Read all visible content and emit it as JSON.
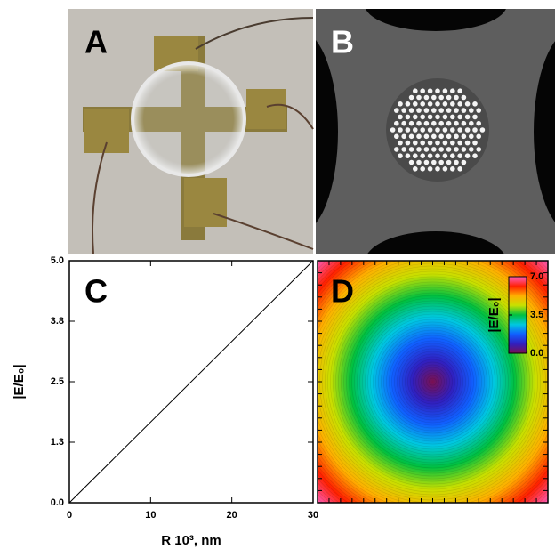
{
  "panel_labels": [
    "A",
    "B"
  ],
  "chart_data": [
    {
      "type": "line",
      "label": "C",
      "xlabel": "R 10³, nm",
      "ylabel": "|E/E₀|",
      "x": [
        0,
        30
      ],
      "series": [
        {
          "color": "#000000",
          "values": [
            0,
            5
          ]
        }
      ],
      "xlim": [
        0,
        30
      ],
      "ylim": [
        0,
        5
      ],
      "xticks": [
        0,
        10,
        20,
        30
      ],
      "yticks": [
        {
          "value": 0,
          "label": "0.0"
        },
        {
          "value": 1.25,
          "label": "1.3"
        },
        {
          "value": 2.5,
          "label": "2.5"
        },
        {
          "value": 3.75,
          "label": "3.8"
        },
        {
          "value": 5,
          "label": "5.0"
        }
      ]
    },
    {
      "type": "heatmap",
      "label": "D",
      "colorbar_label": "|E/E₀|",
      "clim": [
        0,
        7
      ],
      "cticks": [
        {
          "value": 0,
          "label": "0.0"
        },
        {
          "value": 3.5,
          "label": "3.5"
        },
        {
          "value": 7,
          "label": "7.0"
        }
      ],
      "colormap": [
        "#7a1050",
        "#3020c0",
        "#1060ff",
        "#00c8e0",
        "#00c040",
        "#c8e000",
        "#ffb000",
        "#ff2000",
        "#ff60c0"
      ]
    }
  ]
}
